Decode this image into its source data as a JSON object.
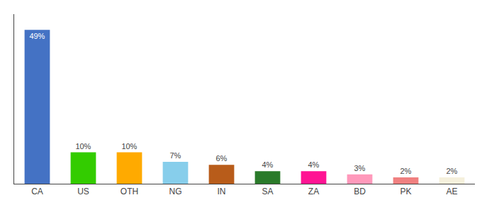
{
  "chart_data": {
    "type": "bar",
    "categories": [
      "CA",
      "US",
      "OTH",
      "NG",
      "IN",
      "SA",
      "ZA",
      "BD",
      "PK",
      "AE"
    ],
    "values": [
      49,
      10,
      10,
      7,
      6,
      4,
      4,
      3,
      2,
      2
    ],
    "value_labels": [
      "49%",
      "10%",
      "10%",
      "7%",
      "6%",
      "4%",
      "4%",
      "3%",
      "2%",
      "2%"
    ],
    "colors": [
      "#4472c4",
      "#33cc00",
      "#ffaa00",
      "#87ceeb",
      "#b85c1a",
      "#2a7a2a",
      "#ff1493",
      "#ff99bb",
      "#f08080",
      "#f5f0dc"
    ],
    "data_labels": true,
    "ylim": [
      0,
      54
    ],
    "grid": false,
    "tick_labels": "x"
  }
}
